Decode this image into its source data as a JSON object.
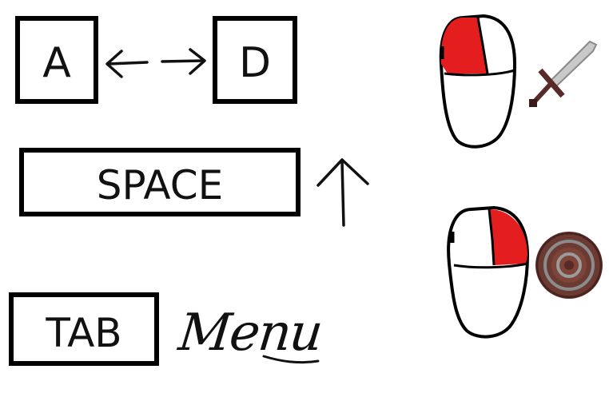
{
  "keys": {
    "a": "A",
    "d": "D",
    "space": "SPACE",
    "tab": "TAB"
  },
  "labels": {
    "tab_action": "Menu"
  },
  "icons": {
    "move_left": "arrow-left-icon",
    "move_right": "arrow-right-icon",
    "jump": "arrow-up-icon",
    "left_click": "mouse-left-click-icon",
    "right_click": "mouse-right-click-icon",
    "attack": "sword-icon",
    "block": "shield-icon"
  },
  "colors": {
    "mouse_button_highlight": "#e41e1e",
    "outline": "#000000",
    "sword_blade": "#c9c9c9",
    "sword_hilt": "#5a2a28",
    "shield": "#6b3a32"
  }
}
